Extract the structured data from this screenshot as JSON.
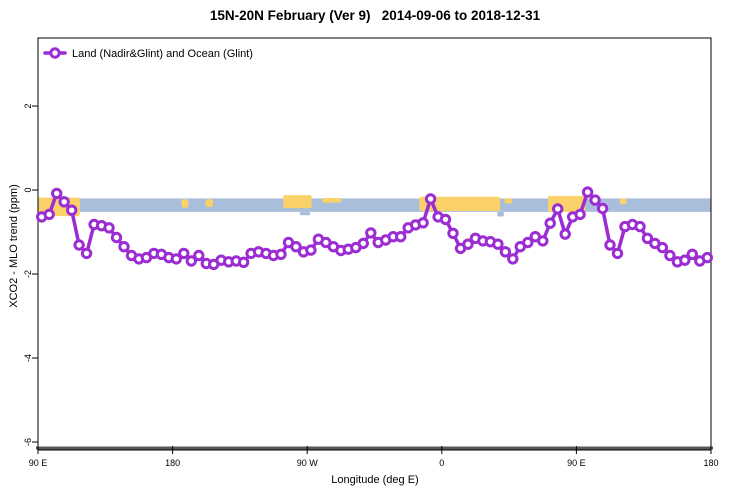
{
  "title": "15N-20N February (Ver 9)   2014-09-06 to 2018-12-31",
  "legend": {
    "label": "Land (Nadir&Glint) and Ocean (Glint)"
  },
  "colors": {
    "line": "#9b2dd2",
    "marker_fill": "#ffffff",
    "ocean_band": "#a9bedb",
    "land_patch": "#fbd169",
    "axis": "#000000",
    "axis_thick": "#595959"
  },
  "chart_data": {
    "type": "line",
    "title": "15N-20N February (Ver 9)   2014-09-06 to 2018-12-31",
    "xlabel": "Longitude (deg E)",
    "ylabel": "XCO2 - MLO trend (ppm)",
    "xlim": [
      90,
      540
    ],
    "ylim": [
      -6.19,
      3.62
    ],
    "grid": false,
    "legend_position": "top-left-inside",
    "xticks": [
      {
        "value": 90,
        "label": "90 E"
      },
      {
        "value": 180,
        "label": "180"
      },
      {
        "value": 270,
        "label": "90 W"
      },
      {
        "value": 360,
        "label": "0"
      },
      {
        "value": 450,
        "label": "90 E"
      },
      {
        "value": 540,
        "label": "180"
      }
    ],
    "yticks": [
      {
        "value": 2,
        "label": "2"
      },
      {
        "value": 0,
        "label": "0"
      },
      {
        "value": -2,
        "label": "-2"
      },
      {
        "value": -4,
        "label": "-4"
      },
      {
        "value": -6,
        "label": "-6"
      }
    ],
    "ocean_band": {
      "top": -0.2,
      "bottom": -0.52
    },
    "land_patches": [
      {
        "x1": 90,
        "x2": 118,
        "top": -0.18,
        "bottom": -0.62
      },
      {
        "x1": 186,
        "x2": 190.5,
        "top": -0.22,
        "bottom": -0.42
      },
      {
        "x1": 202,
        "x2": 207,
        "top": -0.22,
        "bottom": -0.4
      },
      {
        "x1": 254,
        "x2": 273,
        "top": -0.12,
        "bottom": -0.43
      },
      {
        "x1": 280,
        "x2": 293,
        "top": -0.19,
        "bottom": -0.3
      },
      {
        "x1": 345,
        "x2": 399,
        "top": -0.16,
        "bottom": -0.5
      },
      {
        "x1": 402,
        "x2": 407,
        "top": -0.2,
        "bottom": -0.32
      },
      {
        "x1": 431,
        "x2": 456,
        "top": -0.14,
        "bottom": -0.52
      },
      {
        "x1": 479,
        "x2": 483.5,
        "top": -0.2,
        "bottom": -0.34
      }
    ],
    "ocean_drips": [
      {
        "x1": 265,
        "x2": 272,
        "top": -0.52,
        "bottom": -0.6
      },
      {
        "x1": 397,
        "x2": 401.5,
        "top": -0.52,
        "bottom": -0.63
      }
    ],
    "series": [
      {
        "name": "Land (Nadir&Glint) and Ocean (Glint)",
        "x": [
          92.5,
          97.5,
          102.5,
          107.5,
          112.5,
          117.5,
          122.5,
          127.5,
          132.5,
          137.5,
          142.5,
          147.5,
          152.5,
          157.5,
          162.5,
          167.5,
          172.5,
          177.5,
          182.5,
          187.5,
          192.5,
          197.5,
          202.5,
          207.5,
          212.5,
          217.5,
          222.5,
          227.5,
          232.5,
          237.5,
          242.5,
          247.5,
          252.5,
          257.5,
          262.5,
          267.5,
          272.5,
          277.5,
          282.5,
          287.5,
          292.5,
          297.5,
          302.5,
          307.5,
          312.5,
          317.5,
          322.5,
          327.5,
          332.5,
          337.5,
          342.5,
          347.5,
          352.5,
          357.5,
          362.5,
          367.5,
          372.5,
          377.5,
          382.5,
          387.5,
          392.5,
          397.5,
          402.5,
          407.5,
          412.5,
          417.5,
          422.5,
          427.5,
          432.5,
          437.5,
          442.5,
          447.5,
          452.5,
          457.5,
          462.5,
          467.5,
          472.5,
          477.5,
          482.5,
          487.5,
          492.5,
          497.5,
          502.5,
          507.5,
          512.5,
          517.5,
          522.5,
          527.5,
          532.5,
          537.5
        ],
        "y": [
          -0.64,
          -0.58,
          -0.08,
          -0.28,
          -0.48,
          -1.31,
          -1.51,
          -0.82,
          -0.85,
          -0.9,
          -1.13,
          -1.35,
          -1.56,
          -1.64,
          -1.61,
          -1.51,
          -1.53,
          -1.61,
          -1.64,
          -1.51,
          -1.69,
          -1.56,
          -1.75,
          -1.77,
          -1.67,
          -1.71,
          -1.69,
          -1.72,
          -1.51,
          -1.47,
          -1.51,
          -1.56,
          -1.53,
          -1.25,
          -1.35,
          -1.47,
          -1.43,
          -1.17,
          -1.25,
          -1.35,
          -1.44,
          -1.41,
          -1.37,
          -1.27,
          -1.02,
          -1.25,
          -1.19,
          -1.11,
          -1.11,
          -0.9,
          -0.83,
          -0.78,
          -0.21,
          -0.64,
          -0.7,
          -1.03,
          -1.39,
          -1.29,
          -1.15,
          -1.21,
          -1.23,
          -1.29,
          -1.47,
          -1.64,
          -1.35,
          -1.25,
          -1.11,
          -1.21,
          -0.79,
          -0.45,
          -1.05,
          -0.64,
          -0.58,
          -0.05,
          -0.24,
          -0.44,
          -1.31,
          -1.51,
          -0.87,
          -0.82,
          -0.87,
          -1.15,
          -1.27,
          -1.37,
          -1.56,
          -1.71,
          -1.67,
          -1.53,
          -1.69,
          -1.61
        ]
      }
    ]
  }
}
